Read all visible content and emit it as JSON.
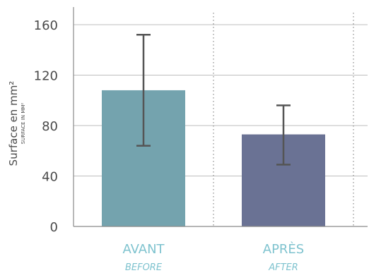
{
  "chart_data": {
    "type": "bar",
    "categories": [
      "AVANT",
      "APRÈS"
    ],
    "categories_sub": [
      "BEFORE",
      "AFTER"
    ],
    "values": [
      108,
      73
    ],
    "error_low": [
      64,
      49
    ],
    "error_high": [
      152,
      96
    ],
    "ylabel": "Surface en mm²",
    "ylabel_sub": "SURFACE IN MM²",
    "ylim": [
      0,
      160
    ],
    "yticks": [
      0,
      40,
      80,
      120,
      160
    ],
    "grid": true,
    "colors": [
      "#74a3ae",
      "#6a7294"
    ],
    "error_color": "#555555",
    "grid_color": "#bdbdbd"
  }
}
